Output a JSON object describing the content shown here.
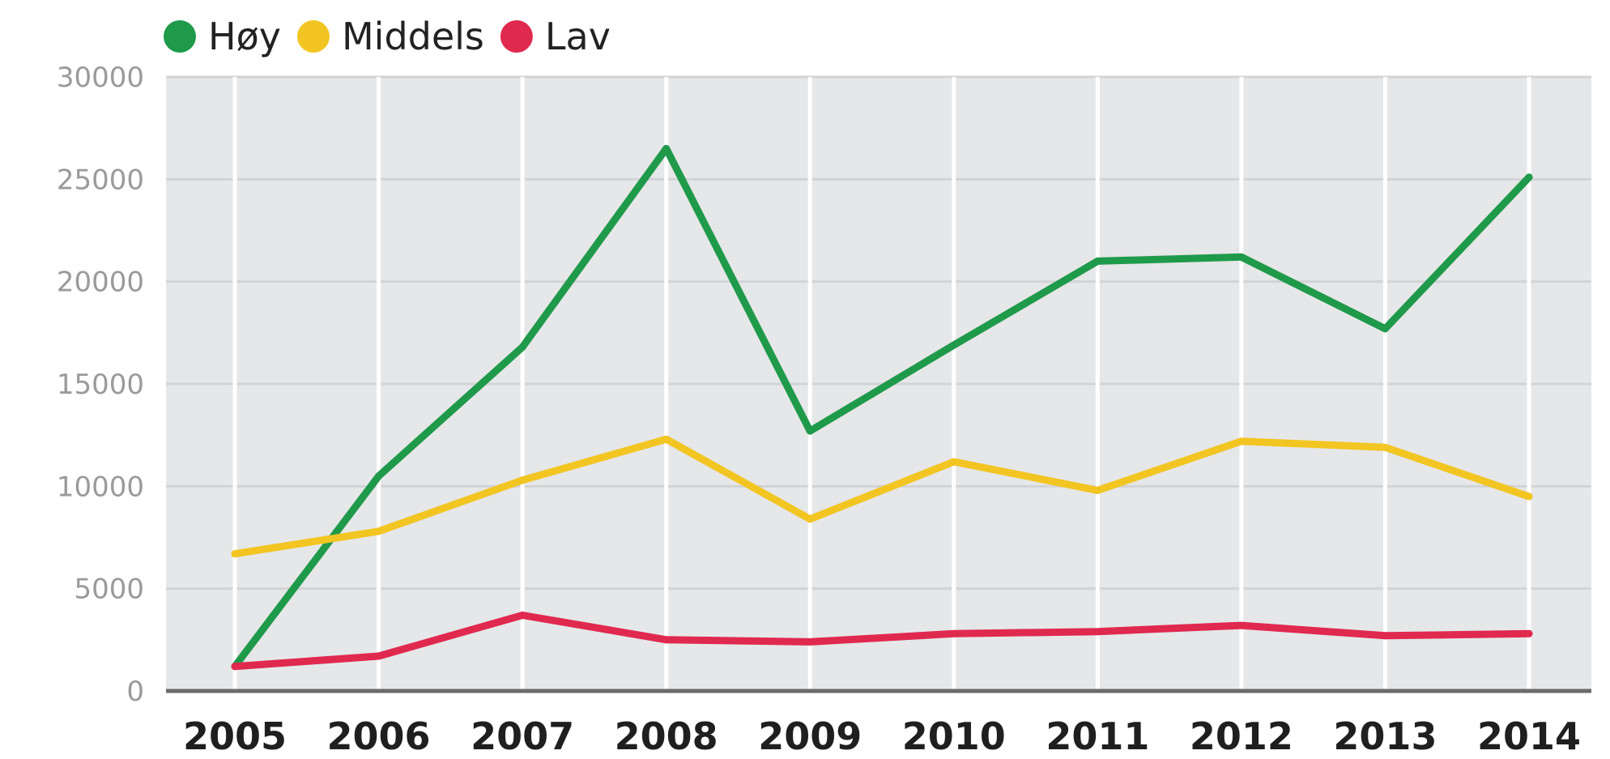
{
  "chart_data": {
    "type": "line",
    "title": "",
    "xlabel": "",
    "ylabel": "",
    "categories": [
      "2005",
      "2006",
      "2007",
      "2008",
      "2009",
      "2010",
      "2011",
      "2012",
      "2013",
      "2014"
    ],
    "ylim": [
      0,
      30000
    ],
    "yticks": [
      0,
      5000,
      10000,
      15000,
      20000,
      25000,
      30000
    ],
    "ytick_labels": [
      "0",
      "5000",
      "10000",
      "15000",
      "20000",
      "25000",
      "30000"
    ],
    "grid": true,
    "legend_position": "top-left",
    "series": [
      {
        "name": "Høy",
        "color": "#1f9a4a",
        "values": [
          1200,
          10500,
          16800,
          26500,
          12700,
          16900,
          21000,
          21200,
          17700,
          25100
        ]
      },
      {
        "name": "Middels",
        "color": "#f2c522",
        "values": [
          6700,
          7800,
          10300,
          12300,
          8400,
          11200,
          9800,
          12200,
          11900,
          9500
        ]
      },
      {
        "name": "Lav",
        "color": "#e0294f",
        "values": [
          1200,
          1700,
          3700,
          2500,
          2400,
          2800,
          2900,
          3200,
          2700,
          2800
        ]
      }
    ]
  }
}
